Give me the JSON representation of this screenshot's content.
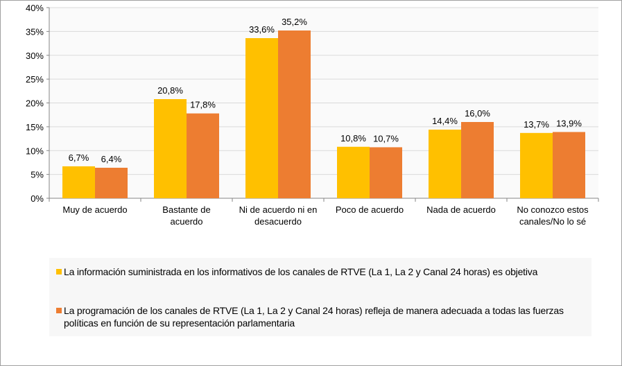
{
  "chart_data": {
    "type": "bar",
    "categories": [
      "Muy de acuerdo",
      "Bastante de acuerdo",
      "Ni de acuerdo ni en desacuerdo",
      "Poco de acuerdo",
      "Nada de acuerdo",
      "No conozco estos canales/No lo sé"
    ],
    "category_lines": [
      [
        "Muy de acuerdo"
      ],
      [
        "Bastante de",
        "acuerdo"
      ],
      [
        "Ni de acuerdo ni en",
        "desacuerdo"
      ],
      [
        "Poco de acuerdo"
      ],
      [
        "Nada de acuerdo"
      ],
      [
        "No conozco estos",
        "canales/No lo sé"
      ]
    ],
    "series": [
      {
        "name": "La información suministrada en los informativos de los canales de RTVE (La 1, La 2 y Canal 24 horas) es objetiva",
        "color": "#FFC000",
        "values": [
          6.7,
          20.8,
          33.6,
          10.8,
          14.4,
          13.7
        ],
        "labels": [
          "6,7%",
          "20,8%",
          "33,6%",
          "10,8%",
          "14,4%",
          "13,7%"
        ]
      },
      {
        "name": "La programación de los canales de RTVE (La 1, La 2 y Canal 24 horas) refleja de manera adecuada a todas las fuerzas políticas en función de su representación parlamentaria",
        "color": "#ED7D31",
        "values": [
          6.4,
          17.8,
          35.2,
          10.7,
          16.0,
          13.9
        ],
        "labels": [
          "6,4%",
          "17,8%",
          "35,2%",
          "10,7%",
          "16,0%",
          "13,9%"
        ]
      }
    ],
    "yticks": [
      "0%",
      "5%",
      "10%",
      "15%",
      "20%",
      "25%",
      "30%",
      "35%",
      "40%"
    ],
    "ylim": [
      0,
      40
    ],
    "grid": true,
    "legend_position": "bottom"
  }
}
